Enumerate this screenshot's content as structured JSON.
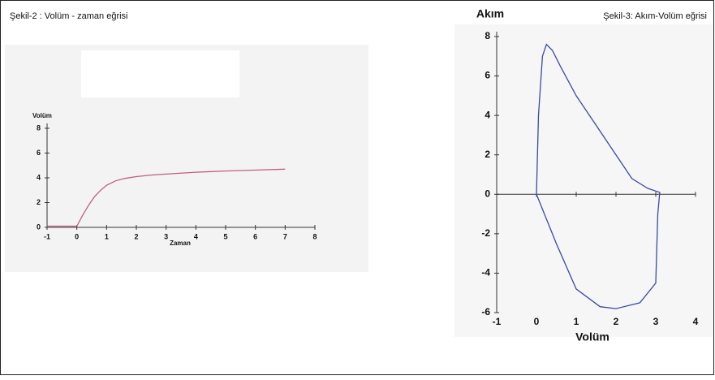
{
  "chart_data": [
    {
      "type": "line",
      "title": "Şekil-2 : Volüm - zaman eğrisi",
      "y_label": "Volüm",
      "x_label": "Zaman",
      "xlim": [
        -1,
        8
      ],
      "xticks": [
        -1,
        0,
        1,
        2,
        3,
        4,
        5,
        6,
        7,
        8
      ],
      "ylim": [
        0,
        8
      ],
      "yticks": [
        0,
        2,
        4,
        6,
        8
      ],
      "series": [
        {
          "name": "Volüm",
          "color": "#c0607a",
          "x": [
            -1,
            0,
            0.2,
            0.4,
            0.6,
            0.8,
            1,
            1.3,
            1.6,
            2,
            2.5,
            3,
            4,
            5,
            6,
            7
          ],
          "values": [
            0.1,
            0.1,
            1.0,
            1.8,
            2.5,
            3.0,
            3.4,
            3.75,
            3.95,
            4.1,
            4.22,
            4.3,
            4.45,
            4.55,
            4.62,
            4.7
          ]
        }
      ]
    },
    {
      "type": "line",
      "title": "Şekil-3: Akım-Volüm eğrisi",
      "y_label": "Akım",
      "x_label": "Volüm",
      "xlim": [
        -1,
        4
      ],
      "xticks": [
        -1,
        0,
        1,
        2,
        3,
        4
      ],
      "ylim": [
        -6,
        8
      ],
      "yticks": [
        -6,
        -4,
        -2,
        0,
        2,
        4,
        6,
        8
      ],
      "series": [
        {
          "name": "Akım",
          "color": "#3a4aa8",
          "x": [
            0,
            0.05,
            0.15,
            0.25,
            0.4,
            0.6,
            1,
            1.5,
            2,
            2.4,
            2.8,
            3.1,
            3.05,
            3.0,
            2.6,
            2.0,
            1.6,
            1.0,
            0.5,
            0.1,
            0
          ],
          "values": [
            0,
            4,
            7,
            7.6,
            7.3,
            6.5,
            5,
            3.5,
            2,
            0.8,
            0.3,
            0.1,
            -1,
            -4.5,
            -5.5,
            -5.8,
            -5.7,
            -4.8,
            -2.5,
            -0.5,
            0
          ]
        }
      ]
    }
  ]
}
